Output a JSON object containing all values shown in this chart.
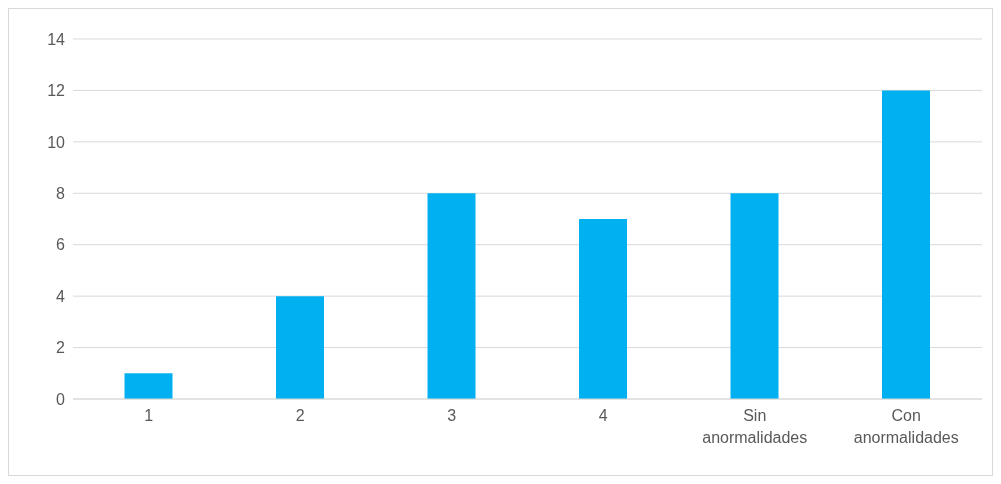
{
  "chart_data": {
    "type": "bar",
    "categories": [
      "1",
      "2",
      "3",
      "4",
      "Sin anormalidades",
      "Con anormalidades"
    ],
    "values": [
      1,
      4,
      8,
      7,
      8,
      12
    ],
    "color": "#00b0f0",
    "ylim": [
      0,
      14
    ],
    "yticks": [
      0,
      2,
      4,
      6,
      8,
      10,
      12,
      14
    ],
    "grid": "y"
  }
}
